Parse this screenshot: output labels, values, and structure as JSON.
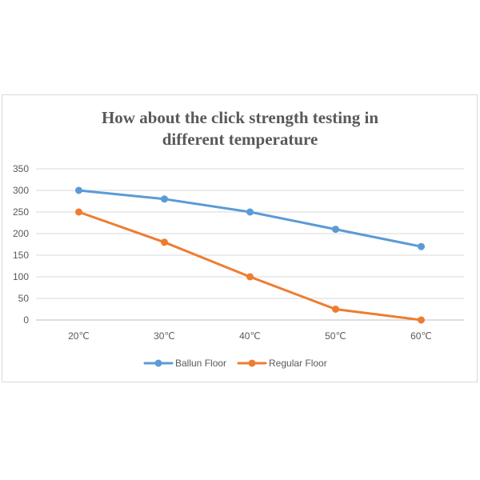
{
  "chart_data": {
    "type": "line",
    "title_line1": "How about the click strength testing in",
    "title_line2": "different temperature",
    "categories": [
      "20℃",
      "30℃",
      "40℃",
      "50℃",
      "60℃"
    ],
    "ylim": [
      0,
      350
    ],
    "yticks": [
      "0",
      "50",
      "100",
      "150",
      "200",
      "250",
      "300",
      "350"
    ],
    "grid": true,
    "legend_position": "bottom",
    "series": [
      {
        "name": "Ballun Floor",
        "color": "#5b9bd5",
        "values": [
          300,
          280,
          250,
          210,
          170
        ]
      },
      {
        "name": "Regular Floor",
        "color": "#ed7d31",
        "values": [
          250,
          180,
          100,
          25,
          0
        ]
      }
    ]
  }
}
